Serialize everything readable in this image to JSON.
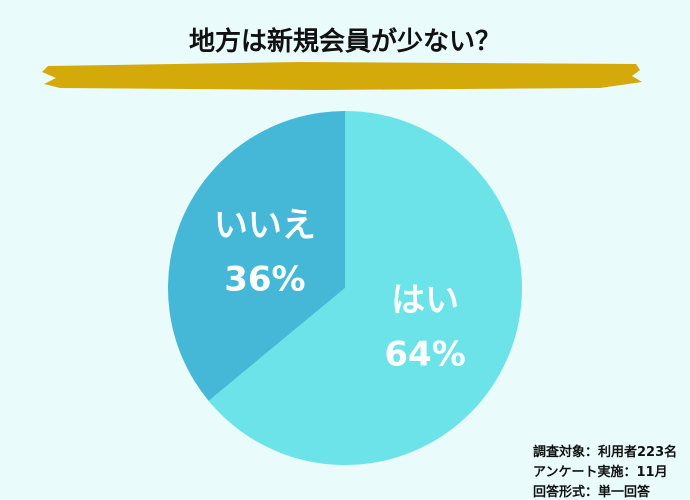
{
  "chart_data": {
    "type": "pie",
    "title": "地方は新規会員が少ない？",
    "categories": [
      "はい",
      "いいえ"
    ],
    "values": [
      64,
      36
    ],
    "value_labels": [
      "64%",
      "36%"
    ],
    "colors": [
      "#6be3e8",
      "#44b8d6"
    ],
    "notes": [
      "調査対象：利用者223名",
      "アンケート実施：11月",
      "回答形式：単一回答"
    ]
  }
}
